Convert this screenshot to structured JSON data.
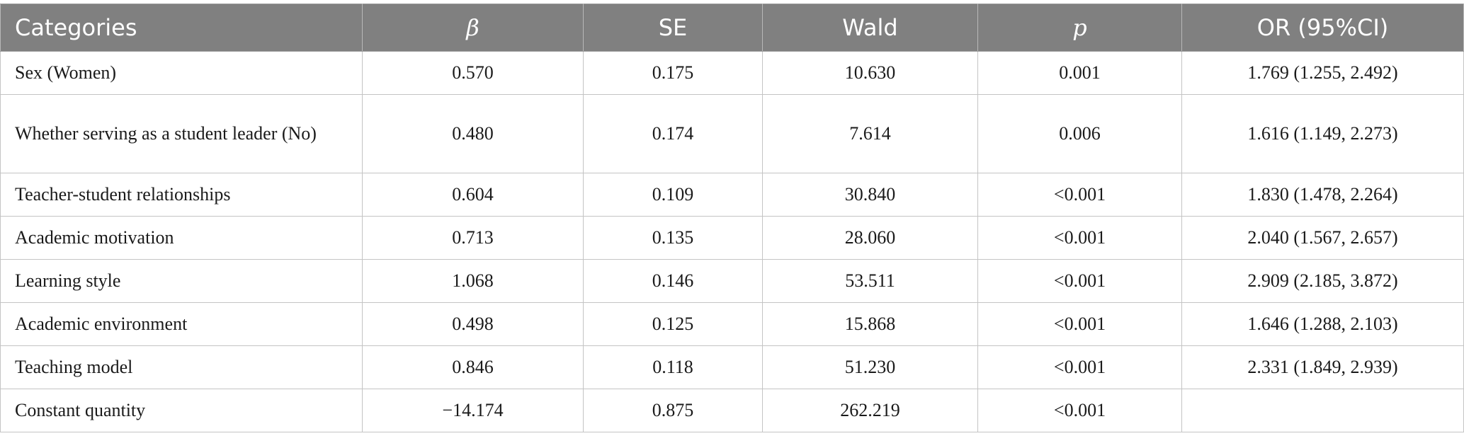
{
  "headers": [
    "Categories",
    "β",
    "SE",
    "Wald",
    "p",
    "OR (95%CI)"
  ],
  "rows": [
    {
      "category": "Sex (Women)",
      "beta": "0.570",
      "se": "0.175",
      "wald": "10.630",
      "p": "0.001",
      "or": "1.769 (1.255, 2.492)"
    },
    {
      "category": "Whether serving as a student leader (No)",
      "beta": "0.480",
      "se": "0.174",
      "wald": "7.614",
      "p": "0.006",
      "or": "1.616 (1.149, 2.273)"
    },
    {
      "category": "Teacher-student relationships",
      "beta": "0.604",
      "se": "0.109",
      "wald": "30.840",
      "p": "<0.001",
      "or": "1.830 (1.478, 2.264)"
    },
    {
      "category": "Academic motivation",
      "beta": "0.713",
      "se": "0.135",
      "wald": "28.060",
      "p": "<0.001",
      "or": "2.040 (1.567, 2.657)"
    },
    {
      "category": "Learning style",
      "beta": "1.068",
      "se": "0.146",
      "wald": "53.511",
      "p": "<0.001",
      "or": "2.909 (2.185, 3.872)"
    },
    {
      "category": "Academic environment",
      "beta": "0.498",
      "se": "0.125",
      "wald": "15.868",
      "p": "<0.001",
      "or": "1.646 (1.288, 2.103)"
    },
    {
      "category": "Teaching model",
      "beta": "0.846",
      "se": "0.118",
      "wald": "51.230",
      "p": "<0.001",
      "or": "2.331 (1.849, 2.939)"
    },
    {
      "category": "Constant quantity",
      "beta": "−14.174",
      "se": "0.875",
      "wald": "262.219",
      "p": "<0.001",
      "or": ""
    }
  ],
  "colors": {
    "header_bg": "#808080",
    "header_text": "#ffffff",
    "grid_line": "#c4c4c4",
    "cell_text": "#1a1a1a"
  }
}
